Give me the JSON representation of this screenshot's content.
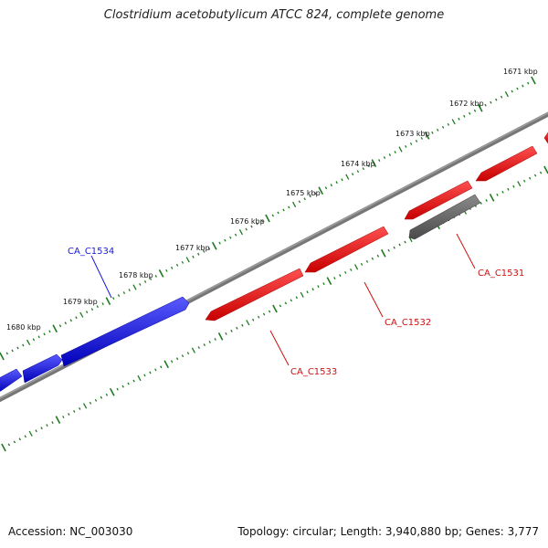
{
  "title": "Clostridium acetobutylicum ATCC 824, complete genome",
  "footer": {
    "accession": "Accession: NC_003030",
    "summary": "Topology: circular; Length: 3,940,880 bp; Genes: 3,777"
  },
  "colors": {
    "backbone": "#7a7a7a",
    "tick": "#1e7a1e",
    "forward_gene": "#1010dd",
    "reverse_gene": "#ee1111",
    "other_gene": "#666666",
    "label_blue": "#1a1adf",
    "label_red": "#cc1111"
  },
  "ticks": [
    {
      "label": "1671 kbp"
    },
    {
      "label": "1672 kbp"
    },
    {
      "label": "1673 kbp"
    },
    {
      "label": "1674 kbp"
    },
    {
      "label": "1675 kbp"
    },
    {
      "label": "1676 kbp"
    },
    {
      "label": "1677 kbp"
    },
    {
      "label": "1678 kbp"
    },
    {
      "label": "1679 kbp"
    },
    {
      "label": "1680 kbp"
    }
  ],
  "gene_labels": [
    {
      "label": "CA_C1534",
      "color_key": "label_blue"
    },
    {
      "label": "CA_C1531",
      "color_key": "label_red"
    },
    {
      "label": "CA_C1532",
      "color_key": "label_red"
    },
    {
      "label": "CA_C1533",
      "color_key": "label_red"
    }
  ]
}
